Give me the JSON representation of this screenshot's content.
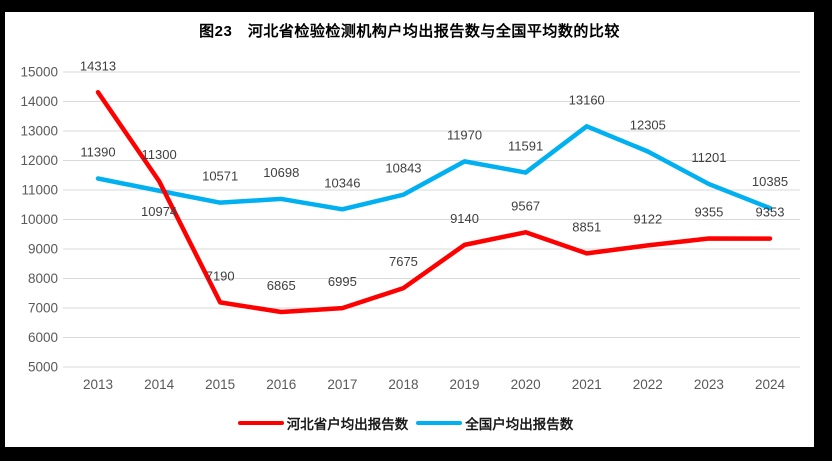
{
  "title": "图23　河北省检验检测机构户均出报告数与全国平均数的比较",
  "chart_data": {
    "type": "line",
    "title": "图23　河北省检验检测机构户均出报告数与全国平均数的比较",
    "categories": [
      "2013",
      "2014",
      "2015",
      "2016",
      "2017",
      "2018",
      "2019",
      "2020",
      "2021",
      "2022",
      "2023",
      "2024"
    ],
    "series": [
      {
        "name": "河北省户均出报告数",
        "color": "#FF0000",
        "values": [
          14313,
          11300,
          7190,
          6865,
          6995,
          7675,
          9140,
          9567,
          8851,
          9122,
          9355,
          9353
        ],
        "label_below_indices": []
      },
      {
        "name": "全国户均出报告数",
        "color": "#00B0F0",
        "values": [
          11390,
          10974,
          10571,
          10698,
          10346,
          10843,
          11970,
          11591,
          13160,
          12305,
          11201,
          10385
        ],
        "label_below_indices": [
          1
        ]
      }
    ],
    "xlabel": "",
    "ylabel": "",
    "ylim": [
      5000,
      15000
    ],
    "ytick_step": 1000,
    "grid": "horizontal",
    "gridline_color": "#D9D9D9",
    "axis_text_color": "#595959",
    "data_label_color": "#3F3F3F",
    "legend_position": "bottom",
    "data_labels": true
  }
}
